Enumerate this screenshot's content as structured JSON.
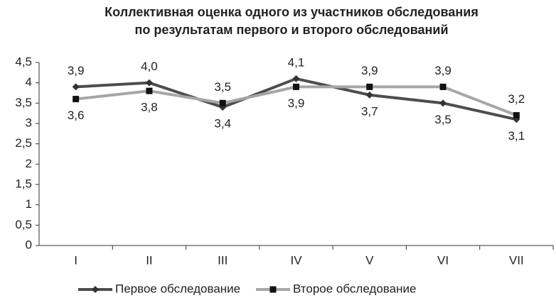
{
  "chart_data": {
    "type": "line",
    "title": [
      "Коллективная оценка одного из участников обследования",
      "по результатам первого и второго обследований"
    ],
    "categories": [
      "I",
      "II",
      "III",
      "IV",
      "V",
      "VI",
      "VII"
    ],
    "series": [
      {
        "name": "Первое обследование",
        "color": "#4d4d4d",
        "marker": "diamond",
        "values": [
          3.9,
          4.0,
          3.4,
          4.1,
          3.7,
          3.5,
          3.1
        ],
        "value_labels": [
          "3,9",
          "4,0",
          "3,4",
          "4,1",
          "3,7",
          "3,5",
          "3,1"
        ]
      },
      {
        "name": "Второе обследование",
        "color": "#a6a6a6",
        "marker": "square",
        "values": [
          3.6,
          3.8,
          3.5,
          3.9,
          3.9,
          3.9,
          3.2
        ],
        "value_labels": [
          "3,6",
          "3,8",
          "3,5",
          "3,9",
          "3,9",
          "3,9",
          "3,2"
        ]
      }
    ],
    "ylim": [
      0,
      4.5
    ],
    "yticks": [
      0,
      {
        "value": 0.5,
        "label": "0,5"
      },
      1,
      {
        "value": 1.5,
        "label": "1,5"
      },
      2,
      {
        "value": 2.5,
        "label": "2,5"
      },
      3,
      {
        "value": 3.5,
        "label": "3,5"
      },
      4,
      {
        "value": 4.5,
        "label": "4,5"
      }
    ],
    "legend": "bottom"
  }
}
